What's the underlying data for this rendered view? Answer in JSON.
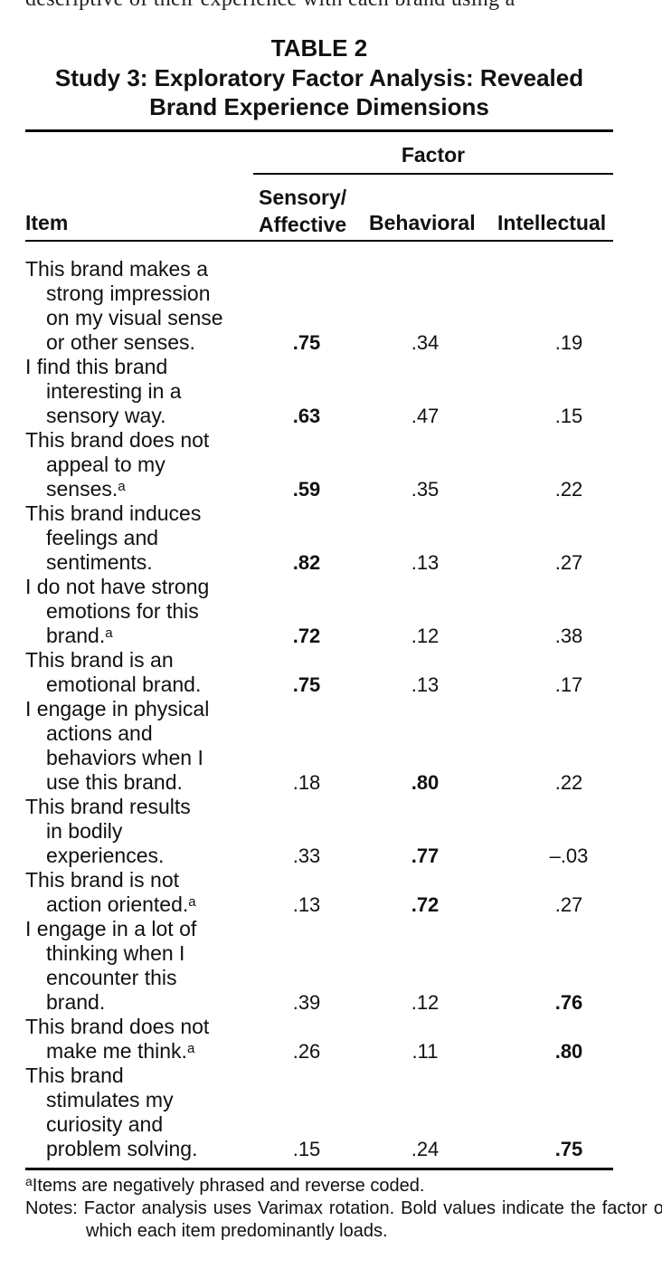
{
  "cutoff_text": "descriptive of their experience with each brand using a",
  "table": {
    "label": "TABLE 2",
    "caption": "Study 3: Exploratory Factor Analysis: Revealed Brand Experience Dimensions",
    "factor_header": "Factor",
    "columns": {
      "item": "Item",
      "sensory": "Sensory/ Affective",
      "behavioral": "Behavioral",
      "intellectual": "Intellectual"
    },
    "rows": [
      {
        "lines": [
          "This brand makes a",
          "strong impression",
          "on my visual sense",
          "or other senses."
        ],
        "note": "",
        "values": [
          ".75",
          ".34",
          ".19"
        ],
        "bold": 0
      },
      {
        "lines": [
          "I find this brand",
          "interesting in a",
          "sensory way."
        ],
        "note": "",
        "values": [
          ".63",
          ".47",
          ".15"
        ],
        "bold": 0
      },
      {
        "lines": [
          "This brand does not",
          "appeal to my",
          "senses."
        ],
        "note": "a",
        "values": [
          ".59",
          ".35",
          ".22"
        ],
        "bold": 0
      },
      {
        "lines": [
          "This brand induces",
          "feelings and",
          "sentiments."
        ],
        "note": "",
        "values": [
          ".82",
          ".13",
          ".27"
        ],
        "bold": 0
      },
      {
        "lines": [
          "I do not have strong",
          "emotions for this",
          "brand."
        ],
        "note": "a",
        "values": [
          ".72",
          ".12",
          ".38"
        ],
        "bold": 0
      },
      {
        "lines": [
          "This brand is an",
          "emotional brand."
        ],
        "note": "",
        "values": [
          ".75",
          ".13",
          ".17"
        ],
        "bold": 0
      },
      {
        "lines": [
          "I engage in physical",
          "actions and",
          "behaviors when I",
          "use this brand."
        ],
        "note": "",
        "values": [
          ".18",
          ".80",
          ".22"
        ],
        "bold": 1
      },
      {
        "lines": [
          "This brand results",
          "in bodily",
          "experiences."
        ],
        "note": "",
        "values": [
          ".33",
          ".77",
          "–.03"
        ],
        "bold": 1
      },
      {
        "lines": [
          "This brand is not",
          "action oriented."
        ],
        "note": "a",
        "values": [
          ".13",
          ".72",
          ".27"
        ],
        "bold": 1
      },
      {
        "lines": [
          "I engage in a lot of",
          "thinking when I",
          "encounter this",
          "brand."
        ],
        "note": "",
        "values": [
          ".39",
          ".12",
          ".76"
        ],
        "bold": 2
      },
      {
        "lines": [
          "This brand does not",
          "make me think."
        ],
        "note": "a",
        "values": [
          ".26",
          ".11",
          ".80"
        ],
        "bold": 2
      },
      {
        "lines": [
          "This brand",
          "stimulates my",
          "curiosity and",
          "problem solving."
        ],
        "note": "",
        "values": [
          ".15",
          ".24",
          ".75"
        ],
        "bold": 2
      }
    ]
  },
  "footnotes": {
    "a_mark": "a",
    "a_text": "Items are negatively phrased and reverse coded.",
    "notes": "Notes: Factor analysis uses Varimax rotation. Bold values indicate the factor on which each item predominantly loads."
  }
}
